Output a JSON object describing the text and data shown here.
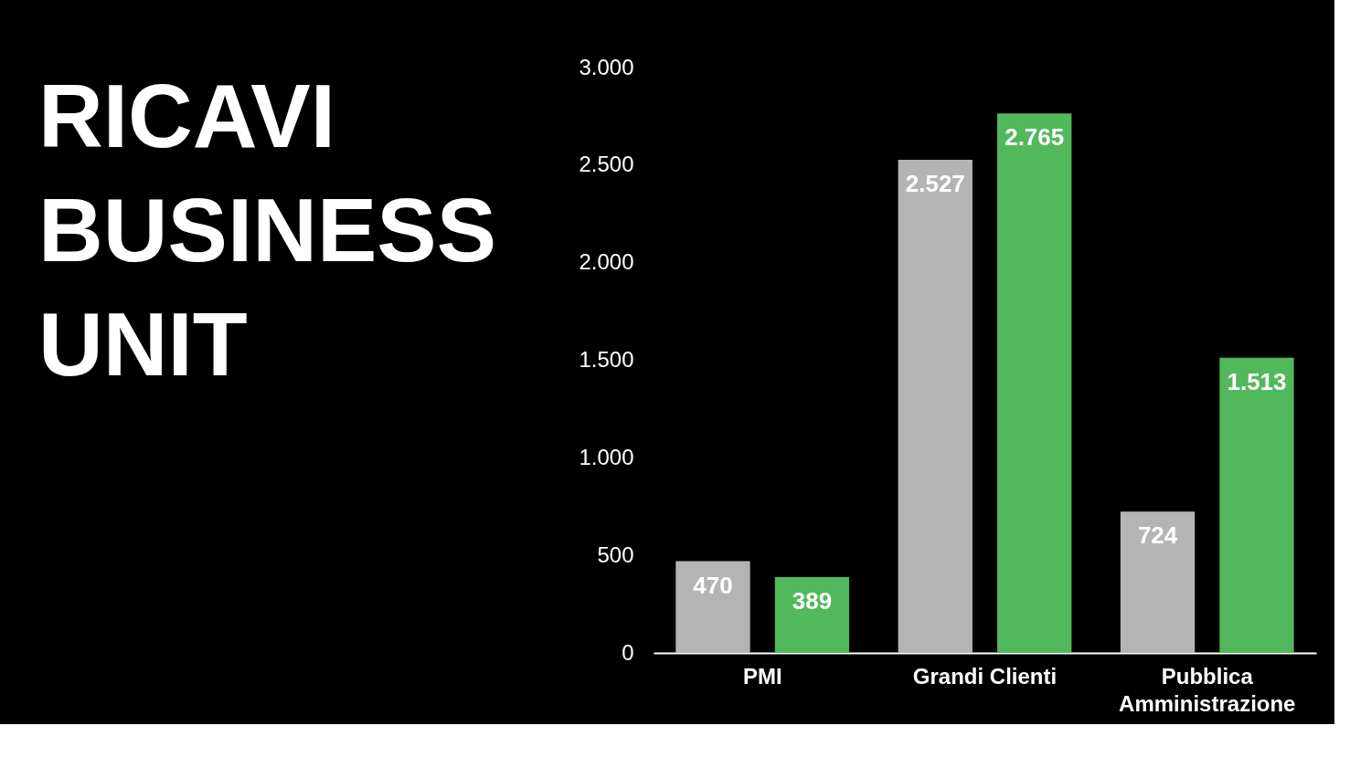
{
  "chart_data": {
    "type": "bar",
    "title": "RICAVI BUSINESS UNIT",
    "categories": [
      "PMI",
      "Grandi Clienti",
      "Pubblica Amministrazione"
    ],
    "series": [
      {
        "color": "#b4b4b4",
        "values": [
          470,
          2527,
          724
        ],
        "value_labels": [
          "470",
          "2.527",
          "724"
        ]
      },
      {
        "color": "#52b85c",
        "values": [
          389,
          2765,
          1513
        ],
        "value_labels": [
          "389",
          "2.765",
          "1.513"
        ]
      }
    ],
    "ylim": [
      0,
      3000
    ],
    "yticks": [
      0,
      {
        "value": 500,
        "label": "500"
      },
      {
        "value": 1000,
        "label": "1.000"
      },
      {
        "value": 1500,
        "label": "1.500"
      },
      {
        "value": 2000,
        "label": "2.000"
      },
      {
        "value": 2500,
        "label": "2.500"
      },
      {
        "value": 3000,
        "label": "3.000"
      }
    ],
    "grid": false,
    "legend": false
  }
}
